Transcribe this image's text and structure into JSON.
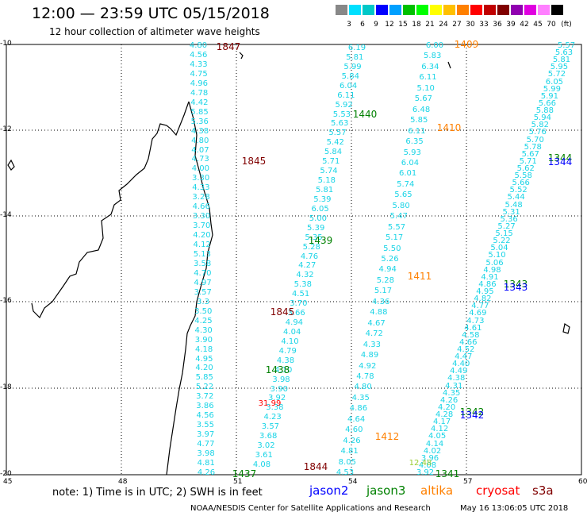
{
  "header": {
    "title": "12:00 — 23:59 UTC 05/15/2018",
    "subtitle": "12 hour collection of altimeter wave heights"
  },
  "legend": {
    "unit": "(ft)",
    "colors": [
      "#888888",
      "#00e0ff",
      "#00c8c8",
      "#0000ff",
      "#00a0ff",
      "#00c000",
      "#00ff00",
      "#ffff00",
      "#ffc000",
      "#ff8000",
      "#ff0000",
      "#c00000",
      "#800000",
      "#9000b0",
      "#e000e0",
      "#ff80ff",
      "#000000"
    ],
    "labels": [
      "3",
      "6",
      "9",
      "12",
      "15",
      "18",
      "21",
      "24",
      "27",
      "30",
      "33",
      "36",
      "39",
      "42",
      "45",
      "70"
    ]
  },
  "axes": {
    "lon_ticks": [
      "45",
      "48",
      "51",
      "54",
      "57",
      "60"
    ],
    "lat_ticks": [
      "-10",
      "-12",
      "-14",
      "-16",
      "-18",
      "-20"
    ]
  },
  "tracks": {
    "t1": [
      "4.80",
      "4.56",
      "4.33",
      "4.75",
      "4.96",
      "4.78",
      "4.42",
      "5.85",
      "5.36",
      "4.38",
      "4.80",
      "4.07",
      "4.73",
      "4.00",
      "3.30",
      "4.33",
      "3.28",
      "4.66",
      "3.30",
      "3.70",
      "4.20",
      "4.12",
      "5.13",
      "3.58",
      "4.70",
      "4.97",
      "3.57",
      "3.3",
      "3.50",
      "4.25",
      "4.30",
      "3.90",
      "4.18",
      "4.95",
      "4.20",
      "5.85",
      "5.22",
      "3.72",
      "3.86",
      "4.56",
      "3.55",
      "3.97",
      "4.77",
      "3.98",
      "4.81",
      "4.26"
    ],
    "t2": [
      "6.19",
      "5.81",
      "5.99",
      "5.84",
      "6.04",
      "6.11",
      "5.92",
      "5.53",
      "5.63",
      "5.57",
      "5.42",
      "5.84",
      "5.71",
      "5.74",
      "5.18",
      "5.81",
      "5.39",
      "6.05",
      "5.00",
      "5.39",
      "5.35",
      "5.28",
      "4.76",
      "4.27",
      "4.32",
      "5.38",
      "4.51",
      "3.70",
      "3.66",
      "4.94",
      "4.04",
      "4.10",
      "4.79",
      "4.38",
      "4.10",
      "3.98",
      "3.90",
      "3.92",
      "3.38",
      "4.23",
      "3.57",
      "3.68",
      "3.02",
      "3.61",
      "4.08"
    ],
    "t3": [
      "6.00",
      "5.83",
      "6.34",
      "6.11",
      "5.10",
      "5.67",
      "6.48",
      "5.85",
      "6.11",
      "6.35",
      "5.93",
      "6.04",
      "6.01",
      "5.74",
      "5.65",
      "5.80",
      "5.47",
      "5.57",
      "5.17",
      "5.50",
      "5.26",
      "4.94",
      "5.28",
      "5.17",
      "4.36",
      "4.88",
      "4.67",
      "4.72",
      "4.33",
      "4.89",
      "4.92",
      "4.78",
      "4.80",
      "4.35",
      "4.86",
      "4.64",
      "4.60",
      "4.26",
      "4.81",
      "8.05",
      "4.53"
    ],
    "t4": [
      "5.57",
      "5.63",
      "5.81",
      "5.95",
      "5.72",
      "6.05",
      "5.99",
      "5.91",
      "5.66",
      "5.88",
      "5.94",
      "5.82",
      "5.76",
      "5.70",
      "5.78",
      "5.67",
      "5.71",
      "5.62",
      "5.58",
      "5.66",
      "5.52",
      "5.44",
      "5.48",
      "5.31",
      "5.36",
      "5.27",
      "5.15",
      "5.22",
      "5.04",
      "5.10",
      "5.06",
      "4.98",
      "4.91",
      "4.86",
      "4.95",
      "4.82",
      "4.77",
      "4.69",
      "4.73",
      "4.61",
      "4.58",
      "4.66",
      "4.52",
      "4.47",
      "4.40",
      "4.49",
      "4.38",
      "4.31",
      "4.35",
      "4.26",
      "4.20",
      "4.28",
      "4.17",
      "4.12",
      "4.05",
      "4.14",
      "4.02",
      "3.96",
      "4.08",
      "3.92"
    ],
    "outlier": "31.99",
    "outlier2": "12.48"
  },
  "time_labels": [
    {
      "text": "1847",
      "color": "#800000"
    },
    {
      "text": "1409",
      "color": "#ff8000"
    },
    {
      "text": "1440",
      "color": "#008000"
    },
    {
      "text": "1410",
      "color": "#ff8000"
    },
    {
      "text": "1845",
      "color": "#800000"
    },
    {
      "text": "1344",
      "color": "#008000"
    },
    {
      "text": "1344",
      "color": "#0000ff"
    },
    {
      "text": "1439",
      "color": "#008000"
    },
    {
      "text": "1411",
      "color": "#ff8000"
    },
    {
      "text": "1343",
      "color": "#008000"
    },
    {
      "text": "1343",
      "color": "#0000ff"
    },
    {
      "text": "1845",
      "color": "#800000"
    },
    {
      "text": "1438",
      "color": "#008000"
    },
    {
      "text": "1342",
      "color": "#008000"
    },
    {
      "text": "1342",
      "color": "#0000ff"
    },
    {
      "text": "1412",
      "color": "#ff8000"
    },
    {
      "text": "1437",
      "color": "#008000"
    },
    {
      "text": "1844",
      "color": "#800000"
    },
    {
      "text": "1341",
      "color": "#008000"
    }
  ],
  "footer": {
    "note": "note: 1) Time is in UTC; 2) SWH is in feet",
    "satellites": [
      {
        "name": "jason2",
        "color": "#0000ff"
      },
      {
        "name": "jason3",
        "color": "#008000"
      },
      {
        "name": "altika",
        "color": "#ff8000"
      },
      {
        "name": "cryosat",
        "color": "#ff0000"
      },
      {
        "name": "s3a",
        "color": "#800000"
      }
    ],
    "credit": "NOAA/NESDIS Center for Satellite Applications and Research",
    "timestamp": "May 16 13:06:05 UTC 2018"
  }
}
